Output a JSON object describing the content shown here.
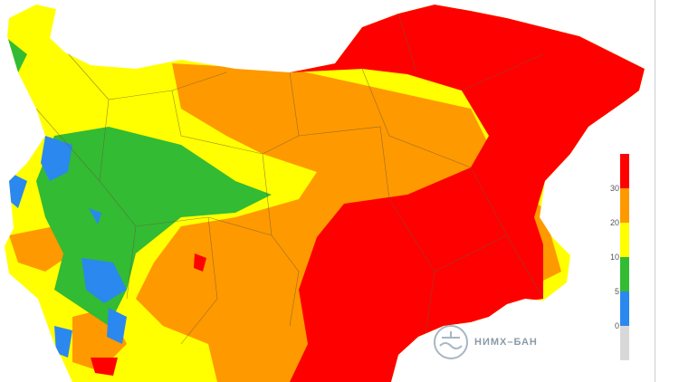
{
  "map": {
    "region": "Bulgaria",
    "colors": {
      "red": "#ff0000",
      "orange": "#ff9900",
      "yellow": "#ffff00",
      "green": "#33bb33",
      "blue": "#2b88ee",
      "grey": "#d8d8d8"
    }
  },
  "legend": {
    "ticks": [
      "30",
      "20",
      "10",
      "5",
      "0"
    ],
    "classes": [
      {
        "color": "#ff0000",
        "range": ">30"
      },
      {
        "color": "#ff9900",
        "range": "20-30"
      },
      {
        "color": "#ffff00",
        "range": "10-20"
      },
      {
        "color": "#33bb33",
        "range": "5-10"
      },
      {
        "color": "#2b88ee",
        "range": "0-5"
      },
      {
        "color": "#d8d8d8",
        "range": "<0"
      }
    ]
  },
  "logo": {
    "text": "НИМХ–БАН"
  }
}
